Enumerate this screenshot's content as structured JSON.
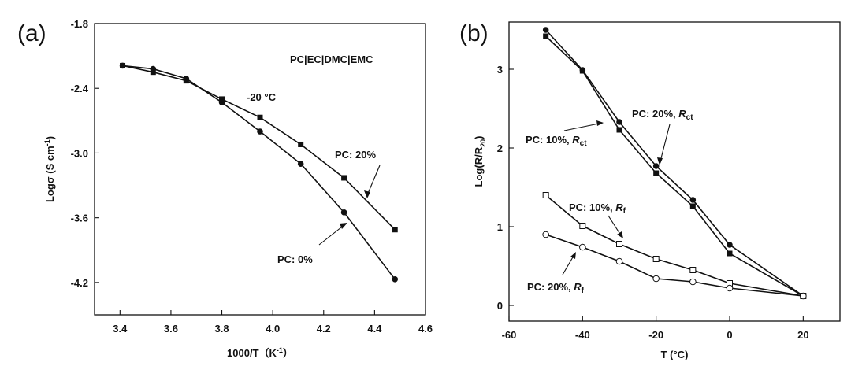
{
  "chart_data": [
    {
      "panel": "(a)",
      "type": "line",
      "xlabel": "1000/T（K",
      "xlabel_sup": "-1",
      "xlabel_tail": "）",
      "ylabel": "Logσ (S cm",
      "ylabel_sup": "-1",
      "ylabel_tail": ")",
      "xlim": [
        3.3,
        4.6
      ],
      "ylim": [
        -4.5,
        -1.8
      ],
      "xticks": [
        "3.4",
        "3.6",
        "3.8",
        "4.0",
        "4.2",
        "4.4",
        "4.6"
      ],
      "xtick_values": [
        3.4,
        3.6,
        3.8,
        4.0,
        4.2,
        4.4,
        4.6
      ],
      "yticks": [
        "-1.8",
        "-2.4",
        "-3.0",
        "-3.6",
        "-4.2"
      ],
      "ytick_values": [
        -1.8,
        -2.4,
        -3.0,
        -3.6,
        -4.2
      ],
      "series": [
        {
          "name": "PC: 20%",
          "marker": "filled-square",
          "x": [
            3.41,
            3.53,
            3.66,
            3.8,
            3.95,
            4.11,
            4.28,
            4.48
          ],
          "y": [
            -2.19,
            -2.25,
            -2.33,
            -2.5,
            -2.67,
            -2.92,
            -3.23,
            -3.71
          ]
        },
        {
          "name": "PC: 0%",
          "marker": "filled-circle",
          "x": [
            3.41,
            3.53,
            3.66,
            3.8,
            3.95,
            4.11,
            4.28,
            4.48
          ],
          "y": [
            -2.19,
            -2.22,
            -2.31,
            -2.53,
            -2.8,
            -3.1,
            -3.55,
            -4.17
          ]
        }
      ],
      "annotations": {
        "system": "PC|EC|DMC|EMC",
        "temp": "-20 °C",
        "label_pc20": "PC: 20%",
        "label_pc0": "PC: 0%"
      }
    },
    {
      "panel": "(b)",
      "type": "line",
      "xlabel": "T (°C)",
      "ylabel": "Log(R/R",
      "ylabel_sub": "20",
      "ylabel_tail": ")",
      "xlim": [
        -60,
        30
      ],
      "ylim": [
        -0.2,
        3.6
      ],
      "xticks": [
        "-60",
        "-40",
        "-20",
        "0",
        "20"
      ],
      "xtick_values": [
        -60,
        -40,
        -20,
        0,
        20
      ],
      "yticks": [
        "0",
        "1",
        "2",
        "3"
      ],
      "ytick_values": [
        0,
        1,
        2,
        3
      ],
      "series": [
        {
          "name": "PC: 10%, Rct",
          "marker": "filled-square",
          "x": [
            -50,
            -40,
            -30,
            -20,
            -10,
            0,
            20
          ],
          "y": [
            3.42,
            2.98,
            2.23,
            1.68,
            1.26,
            0.66,
            0.12
          ]
        },
        {
          "name": "PC: 20%, Rct",
          "marker": "filled-circle",
          "x": [
            -50,
            -40,
            -30,
            -20,
            -10,
            0,
            20
          ],
          "y": [
            3.5,
            2.99,
            2.33,
            1.77,
            1.34,
            0.77,
            0.12
          ]
        },
        {
          "name": "PC: 10%, Rf",
          "marker": "open-square",
          "x": [
            -50,
            -40,
            -30,
            -20,
            -10,
            0,
            20
          ],
          "y": [
            1.4,
            1.01,
            0.78,
            0.59,
            0.45,
            0.28,
            0.12
          ]
        },
        {
          "name": "PC: 20%, Rf",
          "marker": "open-circle",
          "x": [
            -50,
            -40,
            -30,
            -20,
            -10,
            0,
            20
          ],
          "y": [
            0.9,
            0.74,
            0.56,
            0.34,
            0.3,
            0.22,
            0.12
          ]
        }
      ],
      "annotations": {
        "pc10_rct": "PC: 10%, ",
        "pc20_rct": "PC: 20%, ",
        "pc10_rf": "PC: 10%, ",
        "pc20_rf": "PC: 20%, ",
        "r": "R",
        "ct": "ct",
        "f": "f"
      }
    }
  ]
}
